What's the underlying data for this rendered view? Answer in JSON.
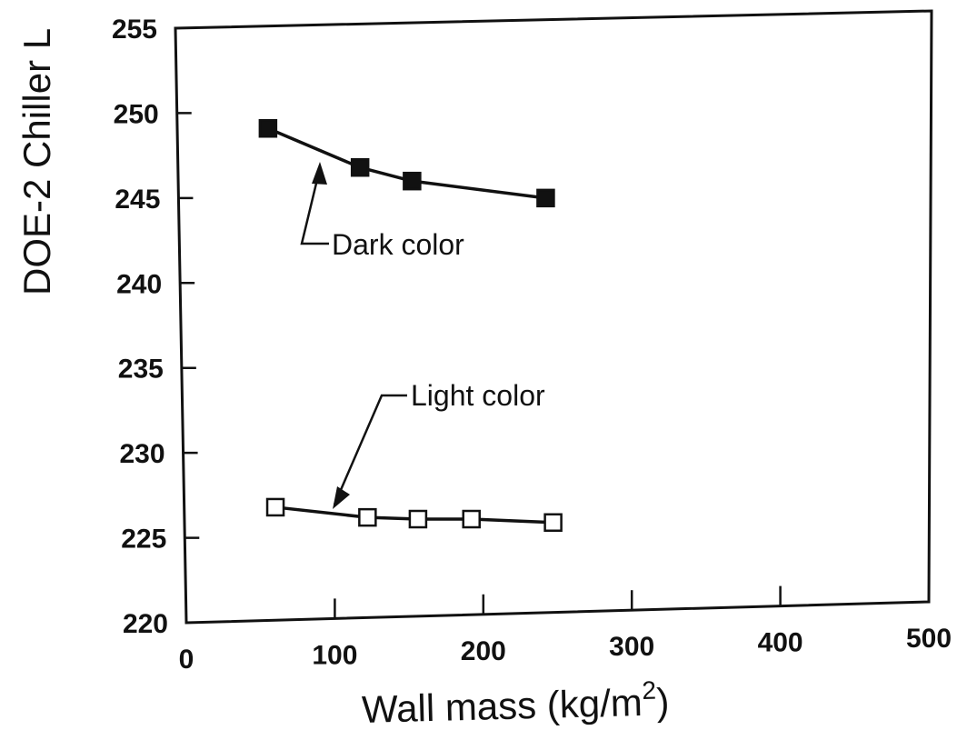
{
  "chart_data": {
    "type": "line",
    "xlabel": "Wall mass (kg/m",
    "xlabel_sup": "2",
    "xlabel_tail": ")",
    "ylabel": "DOE-2 Chiller L",
    "xlim": [
      0,
      500
    ],
    "ylim": [
      220,
      255
    ],
    "xticks": [
      0,
      100,
      200,
      300,
      400,
      500
    ],
    "yticks": [
      220,
      225,
      230,
      235,
      240,
      245,
      250,
      255
    ],
    "grid": false,
    "series": [
      {
        "key": "dark",
        "marker": "filled-square",
        "color": "#111111",
        "x": [
          55,
          117,
          152,
          242
        ],
        "y": [
          249.1,
          246.8,
          246.0,
          245.0
        ]
      },
      {
        "key": "light",
        "marker": "hollow-square",
        "color": "#111111",
        "x": [
          60,
          122,
          156,
          192,
          247
        ],
        "y": [
          226.8,
          226.2,
          226.1,
          226.1,
          225.9
        ]
      }
    ],
    "annotations": [
      {
        "key": "dark",
        "text": "Dark color"
      },
      {
        "key": "light",
        "text": "Light color"
      }
    ]
  }
}
